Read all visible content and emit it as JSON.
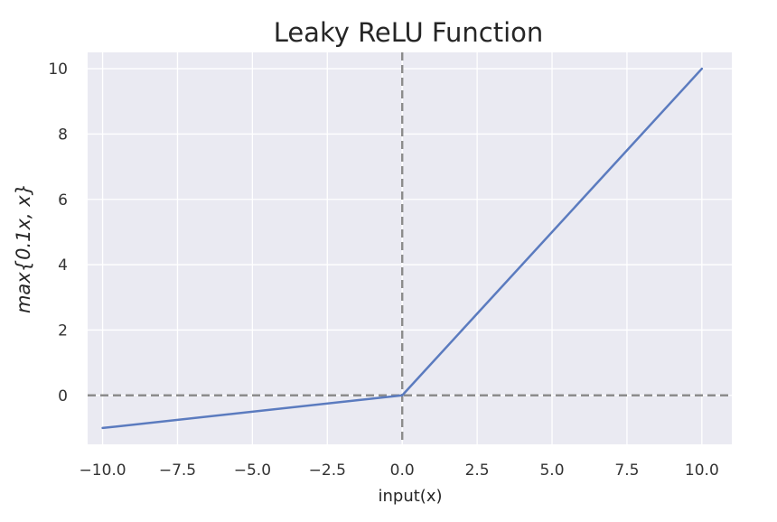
{
  "chart_data": {
    "type": "line",
    "title": "Leaky ReLU Function",
    "xlabel": "input(x)",
    "ylabel": "max{0.1x, x}",
    "xlim": [
      -10.5,
      11.0
    ],
    "ylim": [
      -1.5,
      10.5
    ],
    "x_ticks": [
      -10.0,
      -7.5,
      -5.0,
      -2.5,
      0.0,
      2.5,
      5.0,
      7.5,
      10.0
    ],
    "x_tick_labels": [
      "−10.0",
      "−7.5",
      "−5.0",
      "−2.5",
      "0.0",
      "2.5",
      "5.0",
      "7.5",
      "10.0"
    ],
    "y_ticks": [
      0,
      2,
      4,
      6,
      8,
      10
    ],
    "y_tick_labels": [
      "0",
      "2",
      "4",
      "6",
      "8",
      "10"
    ],
    "grid": true,
    "series": [
      {
        "x": [
          -10.0,
          0.0,
          10.0
        ],
        "y": [
          -1.0,
          0.0,
          10.0
        ],
        "color": "#5b7bbf"
      }
    ],
    "reference_lines": [
      {
        "orientation": "horizontal",
        "value": 0,
        "style": "dashed",
        "color": "#8c8c8c"
      },
      {
        "orientation": "vertical",
        "value": 0,
        "style": "dashed",
        "color": "#8c8c8c"
      }
    ],
    "colors": {
      "plot_background": "#eaeaf2",
      "grid": "#ffffff"
    }
  }
}
